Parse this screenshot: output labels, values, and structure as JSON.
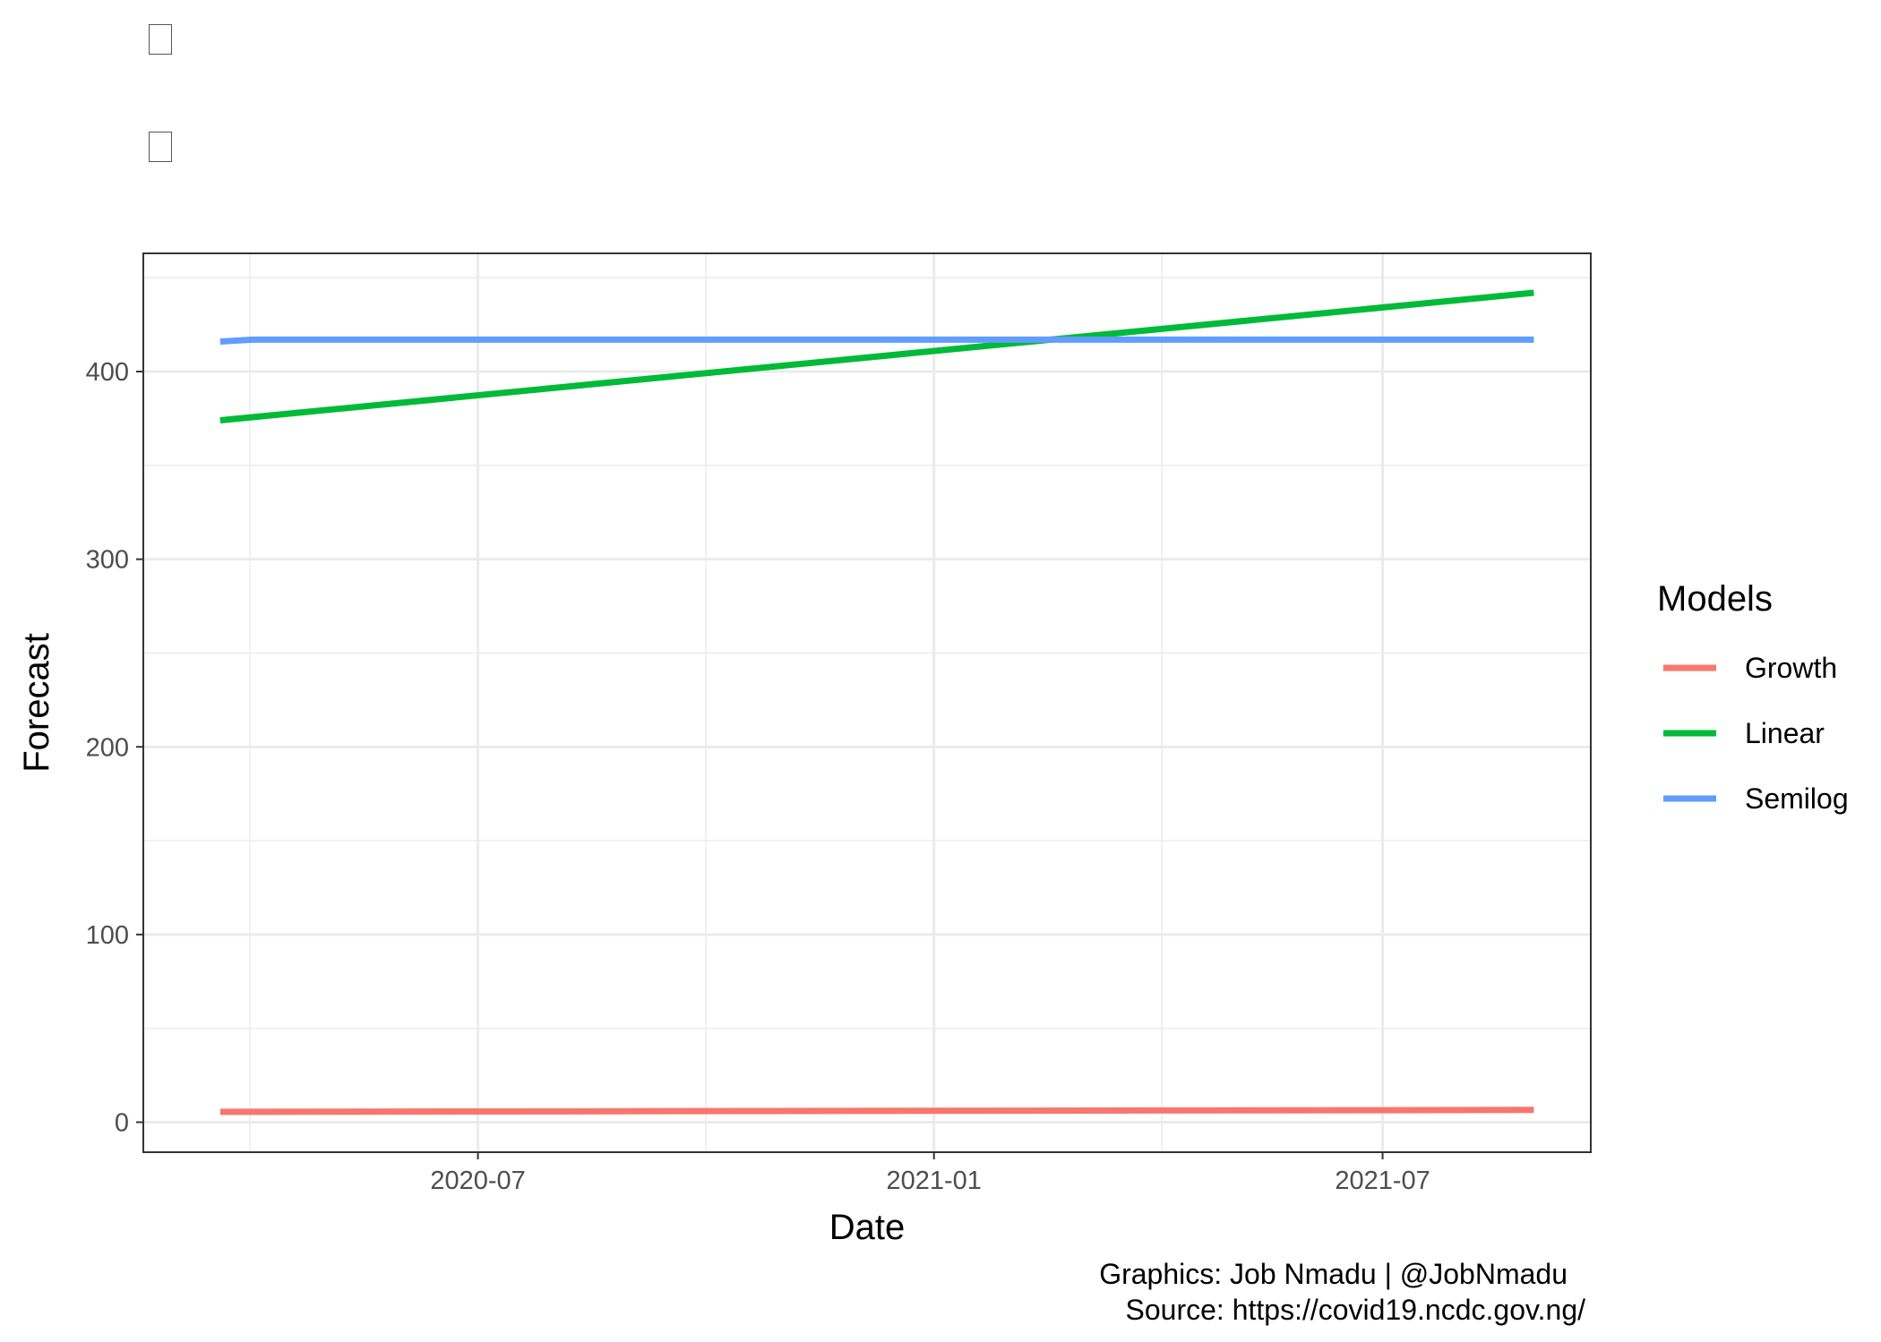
{
  "placeholder_glyphs": [
    "missing-glyph-box",
    "missing-glyph-box"
  ],
  "chart_data": {
    "type": "line",
    "xlabel": "Date",
    "ylabel": "Forecast",
    "x_ticks": [
      "2020-07",
      "2021-01",
      "2021-07"
    ],
    "x_tick_dates": [
      "2020-07-01",
      "2021-01-01",
      "2021-07-01"
    ],
    "xlim": [
      "2020-02-17",
      "2021-09-23"
    ],
    "y_ticks": [
      0,
      100,
      200,
      300,
      400
    ],
    "ylim": [
      -16,
      463
    ],
    "grid": true,
    "legend": {
      "title": "Models",
      "position": "right"
    },
    "series": [
      {
        "name": "Growth",
        "color": "#F8766D",
        "x": [
          "2020-03-19",
          "2021-08-31"
        ],
        "y": [
          5.5,
          6.5
        ]
      },
      {
        "name": "Linear",
        "color": "#00BA38",
        "x": [
          "2020-03-19",
          "2021-08-31"
        ],
        "y": [
          374,
          442
        ]
      },
      {
        "name": "Semilog",
        "color": "#619CFF",
        "x": [
          "2020-03-19",
          "2020-04-01",
          "2021-08-31"
        ],
        "y": [
          416,
          417,
          417
        ]
      }
    ]
  },
  "caption": {
    "line1": "Graphics: Job Nmadu | @JobNmadu",
    "line2": "Source: https://covid19.ncdc.gov.ng/"
  }
}
